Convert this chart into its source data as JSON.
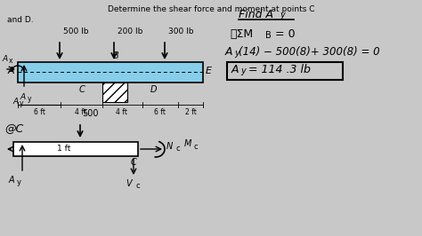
{
  "bg": "#d8d8d8",
  "fig_width": 4.74,
  "fig_height": 2.66,
  "dpi": 100,
  "title1": "Determine the shear force and moment at points C",
  "title2": "and D.",
  "find_ay": "Find A",
  "find_ay_sub": "y",
  "eq1": "ⒶΣM",
  "eq1_sub": "B",
  "eq1_rest": " = 0",
  "eq2a": "A",
  "eq2a_sub": "y",
  "eq2b": "(14) − 500(8)+ 300(8) = 0",
  "eq3a": "A",
  "eq3a_sub": "y",
  "eq3b": " = 114 .3 lb",
  "beam_fc": "#87ceeb",
  "beam_ec": "#000000"
}
